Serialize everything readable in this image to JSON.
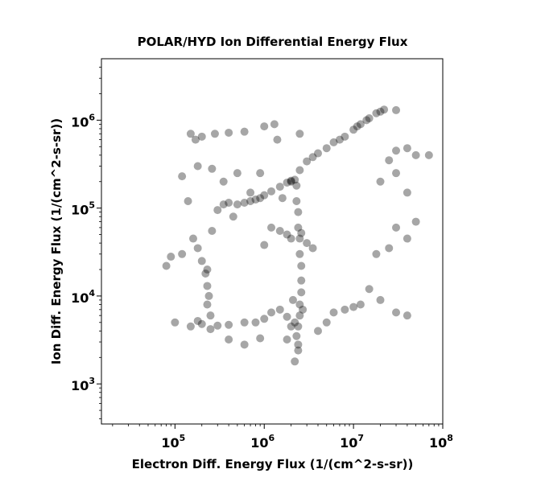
{
  "chart_data": {
    "type": "scatter",
    "title": "POLAR/HYD  Ion Differential Energy Flux",
    "xlabel": "Electron Diff. Energy Flux (1/(cm^2-s-sr))",
    "ylabel": "Ion Diff. Energy Flux (1/(cm^2-s-sr))",
    "xscale": "log",
    "yscale": "log",
    "xlim": [
      15000,
      100000000
    ],
    "ylim": [
      350,
      5000000
    ],
    "x_tick_labels": [
      {
        "base": "10",
        "exp": "5",
        "value": 100000
      },
      {
        "base": "10",
        "exp": "6",
        "value": 1000000
      },
      {
        "base": "10",
        "exp": "7",
        "value": 10000000
      },
      {
        "base": "10",
        "exp": "8",
        "value": 100000000
      }
    ],
    "y_tick_labels": [
      {
        "base": "10",
        "exp": "3",
        "value": 1000
      },
      {
        "base": "10",
        "exp": "4",
        "value": 10000
      },
      {
        "base": "10",
        "exp": "5",
        "value": 100000
      },
      {
        "base": "10",
        "exp": "6",
        "value": 1000000
      }
    ],
    "grid": false,
    "legend": "none",
    "marker_color": "#000000",
    "marker_alpha": 0.35,
    "points": [
      [
        1600000,
        130000
      ],
      [
        2000000,
        200000
      ],
      [
        2500000,
        270000
      ],
      [
        3000000,
        340000
      ],
      [
        4000000,
        420000
      ],
      [
        5000000,
        480000
      ],
      [
        6000000,
        560000
      ],
      [
        8000000,
        650000
      ],
      [
        10000000,
        780000
      ],
      [
        12000000,
        900000
      ],
      [
        15000000,
        1050000
      ],
      [
        18000000,
        1200000
      ],
      [
        20000000,
        1250000
      ],
      [
        22000000,
        1320000
      ],
      [
        30000000,
        1300000
      ],
      [
        14000000,
        1000000
      ],
      [
        11000000,
        850000
      ],
      [
        7000000,
        600000
      ],
      [
        3500000,
        380000
      ],
      [
        350000,
        110000
      ],
      [
        400000,
        115000
      ],
      [
        500000,
        110000
      ],
      [
        600000,
        115000
      ],
      [
        800000,
        125000
      ],
      [
        1000000,
        140000
      ],
      [
        1200000,
        155000
      ],
      [
        1500000,
        175000
      ],
      [
        1800000,
        195000
      ],
      [
        2000000,
        205000
      ],
      [
        2200000,
        210000
      ],
      [
        300000,
        95000
      ],
      [
        450000,
        80000
      ],
      [
        700000,
        120000
      ],
      [
        900000,
        130000
      ],
      [
        2300000,
        180000
      ],
      [
        2300000,
        120000
      ],
      [
        2400000,
        90000
      ],
      [
        2400000,
        60000
      ],
      [
        2500000,
        45000
      ],
      [
        2500000,
        30000
      ],
      [
        2600000,
        22000
      ],
      [
        2600000,
        15000
      ],
      [
        2600000,
        11000
      ],
      [
        2500000,
        8000
      ],
      [
        2500000,
        6000
      ],
      [
        2400000,
        4500
      ],
      [
        2300000,
        3500
      ],
      [
        2400000,
        2800
      ],
      [
        2400000,
        2400
      ],
      [
        2700000,
        7000
      ],
      [
        2200000,
        5000
      ],
      [
        2100000,
        9000
      ],
      [
        1200000,
        60000
      ],
      [
        1500000,
        55000
      ],
      [
        1800000,
        50000
      ],
      [
        2000000,
        45000
      ],
      [
        2600000,
        52000
      ],
      [
        3000000,
        40000
      ],
      [
        3500000,
        35000
      ],
      [
        1000000,
        38000
      ],
      [
        100000,
        5000
      ],
      [
        150000,
        4500
      ],
      [
        200000,
        4800
      ],
      [
        300000,
        4600
      ],
      [
        400000,
        4700
      ],
      [
        600000,
        5000
      ],
      [
        800000,
        5000
      ],
      [
        1000000,
        5500
      ],
      [
        1200000,
        6500
      ],
      [
        1500000,
        7000
      ],
      [
        1800000,
        5800
      ],
      [
        2000000,
        4500
      ],
      [
        180000,
        5200
      ],
      [
        250000,
        4200
      ],
      [
        160000,
        45000
      ],
      [
        180000,
        35000
      ],
      [
        200000,
        25000
      ],
      [
        220000,
        18000
      ],
      [
        230000,
        13000
      ],
      [
        240000,
        10000
      ],
      [
        230000,
        8000
      ],
      [
        250000,
        6000
      ],
      [
        260000,
        55000
      ],
      [
        120000,
        30000
      ],
      [
        90000,
        28000
      ],
      [
        80000,
        22000
      ],
      [
        150000,
        700000
      ],
      [
        200000,
        650000
      ],
      [
        280000,
        700000
      ],
      [
        400000,
        720000
      ],
      [
        600000,
        740000
      ],
      [
        1000000,
        850000
      ],
      [
        1300000,
        900000
      ],
      [
        2500000,
        700000
      ],
      [
        120000,
        230000
      ],
      [
        180000,
        300000
      ],
      [
        260000,
        280000
      ],
      [
        170000,
        600000
      ],
      [
        30000000,
        450000
      ],
      [
        40000000,
        480000
      ],
      [
        50000000,
        400000
      ],
      [
        70000000,
        400000
      ],
      [
        25000000,
        350000
      ],
      [
        30000000,
        250000
      ],
      [
        20000000,
        200000
      ],
      [
        40000000,
        150000
      ],
      [
        50000000,
        70000
      ],
      [
        30000000,
        60000
      ],
      [
        40000000,
        45000
      ],
      [
        25000000,
        35000
      ],
      [
        18000000,
        30000
      ],
      [
        15000000,
        12000
      ],
      [
        20000000,
        9000
      ],
      [
        30000000,
        6500
      ],
      [
        40000000,
        6000
      ],
      [
        12000000,
        8000
      ],
      [
        10000000,
        7500
      ],
      [
        8000000,
        7000
      ],
      [
        6000000,
        6500
      ],
      [
        5000000,
        5000
      ],
      [
        4000000,
        4000
      ],
      [
        2200000,
        1800
      ],
      [
        400000,
        3200
      ],
      [
        600000,
        2800
      ],
      [
        900000,
        3300
      ],
      [
        1800000,
        3200
      ],
      [
        140000,
        120000
      ],
      [
        230000,
        20000
      ],
      [
        700000,
        150000
      ],
      [
        350000,
        200000
      ],
      [
        500000,
        250000
      ],
      [
        900000,
        250000
      ],
      [
        1400000,
        600000
      ]
    ]
  }
}
